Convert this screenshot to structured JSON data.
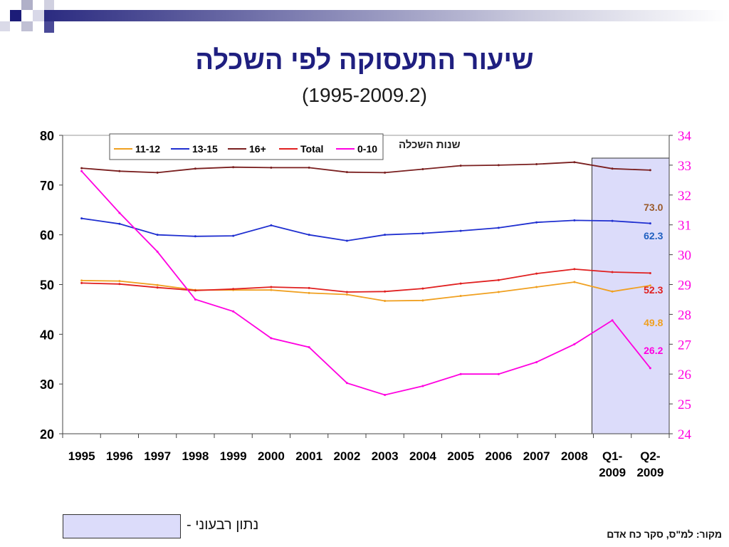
{
  "slide": {
    "title": "שיעור התעסוקה לפי השכלה",
    "subtitle": "(1995-2009.2)",
    "axis_caption": "שנות השכלה",
    "quarterly_legend": "נתון רבעוני -",
    "source": "מקור: למ\"ס, סקר כח אדם"
  },
  "chart_data": {
    "type": "line",
    "categories": [
      "1995",
      "1996",
      "1997",
      "1998",
      "1999",
      "2000",
      "2001",
      "2002",
      "2003",
      "2004",
      "2005",
      "2006",
      "2007",
      "2008",
      "Q1-\n2009",
      "Q2-\n2009"
    ],
    "y_left": {
      "min": 20,
      "max": 80,
      "ticks": [
        20,
        30,
        40,
        50,
        60,
        70,
        80
      ]
    },
    "y_right": {
      "min": 24,
      "max": 34,
      "ticks": [
        24,
        25,
        26,
        27,
        28,
        29,
        30,
        31,
        32,
        33,
        34
      ]
    },
    "quarterly_highlight": {
      "from_index": 14,
      "to_index": 15,
      "color": "#dcdcfa"
    },
    "series": [
      {
        "name": "11-12",
        "color": "#f0a020",
        "axis": "left",
        "values": [
          50.8,
          50.7,
          49.9,
          48.9,
          48.9,
          48.9,
          48.3,
          48.0,
          46.7,
          46.8,
          47.7,
          48.5,
          49.5,
          50.5,
          48.6,
          49.8
        ]
      },
      {
        "name": "13-15",
        "color": "#1f2fd0",
        "axis": "left",
        "values": [
          63.3,
          62.2,
          60.0,
          59.7,
          59.8,
          61.9,
          60.0,
          58.8,
          60.0,
          60.3,
          60.8,
          61.4,
          62.5,
          62.9,
          62.8,
          62.3
        ]
      },
      {
        "name": "16+",
        "color": "#7a1f1f",
        "axis": "left",
        "values": [
          73.4,
          72.8,
          72.5,
          73.3,
          73.6,
          73.5,
          73.5,
          72.6,
          72.5,
          73.2,
          73.9,
          74.0,
          74.2,
          74.6,
          73.3,
          73.0
        ]
      },
      {
        "name": "Total",
        "color": "#e02020",
        "axis": "left",
        "values": [
          50.3,
          50.1,
          49.4,
          48.8,
          49.1,
          49.5,
          49.3,
          48.5,
          48.6,
          49.2,
          50.2,
          50.9,
          52.2,
          53.1,
          52.5,
          52.3
        ]
      },
      {
        "name": "0-10",
        "color": "#ff00e0",
        "axis": "right",
        "values": [
          32.8,
          31.4,
          30.1,
          28.5,
          28.1,
          27.2,
          26.9,
          25.7,
          25.3,
          25.6,
          26.0,
          26.0,
          26.4,
          27.0,
          27.8,
          26.2
        ]
      }
    ],
    "end_labels": [
      {
        "text": "73.0",
        "color": "#9a5a2a",
        "value": 73.0
      },
      {
        "text": "62.3",
        "color": "#2060c0",
        "value": 62.3
      },
      {
        "text": "52.3",
        "color": "#e02020",
        "value": 52.3
      },
      {
        "text": "49.8",
        "color": "#f0a020",
        "value": 49.8
      },
      {
        "text": "26.2",
        "color": "#ff00e0",
        "value": 26.2
      }
    ],
    "legend_position": "top-left",
    "grid": false
  }
}
